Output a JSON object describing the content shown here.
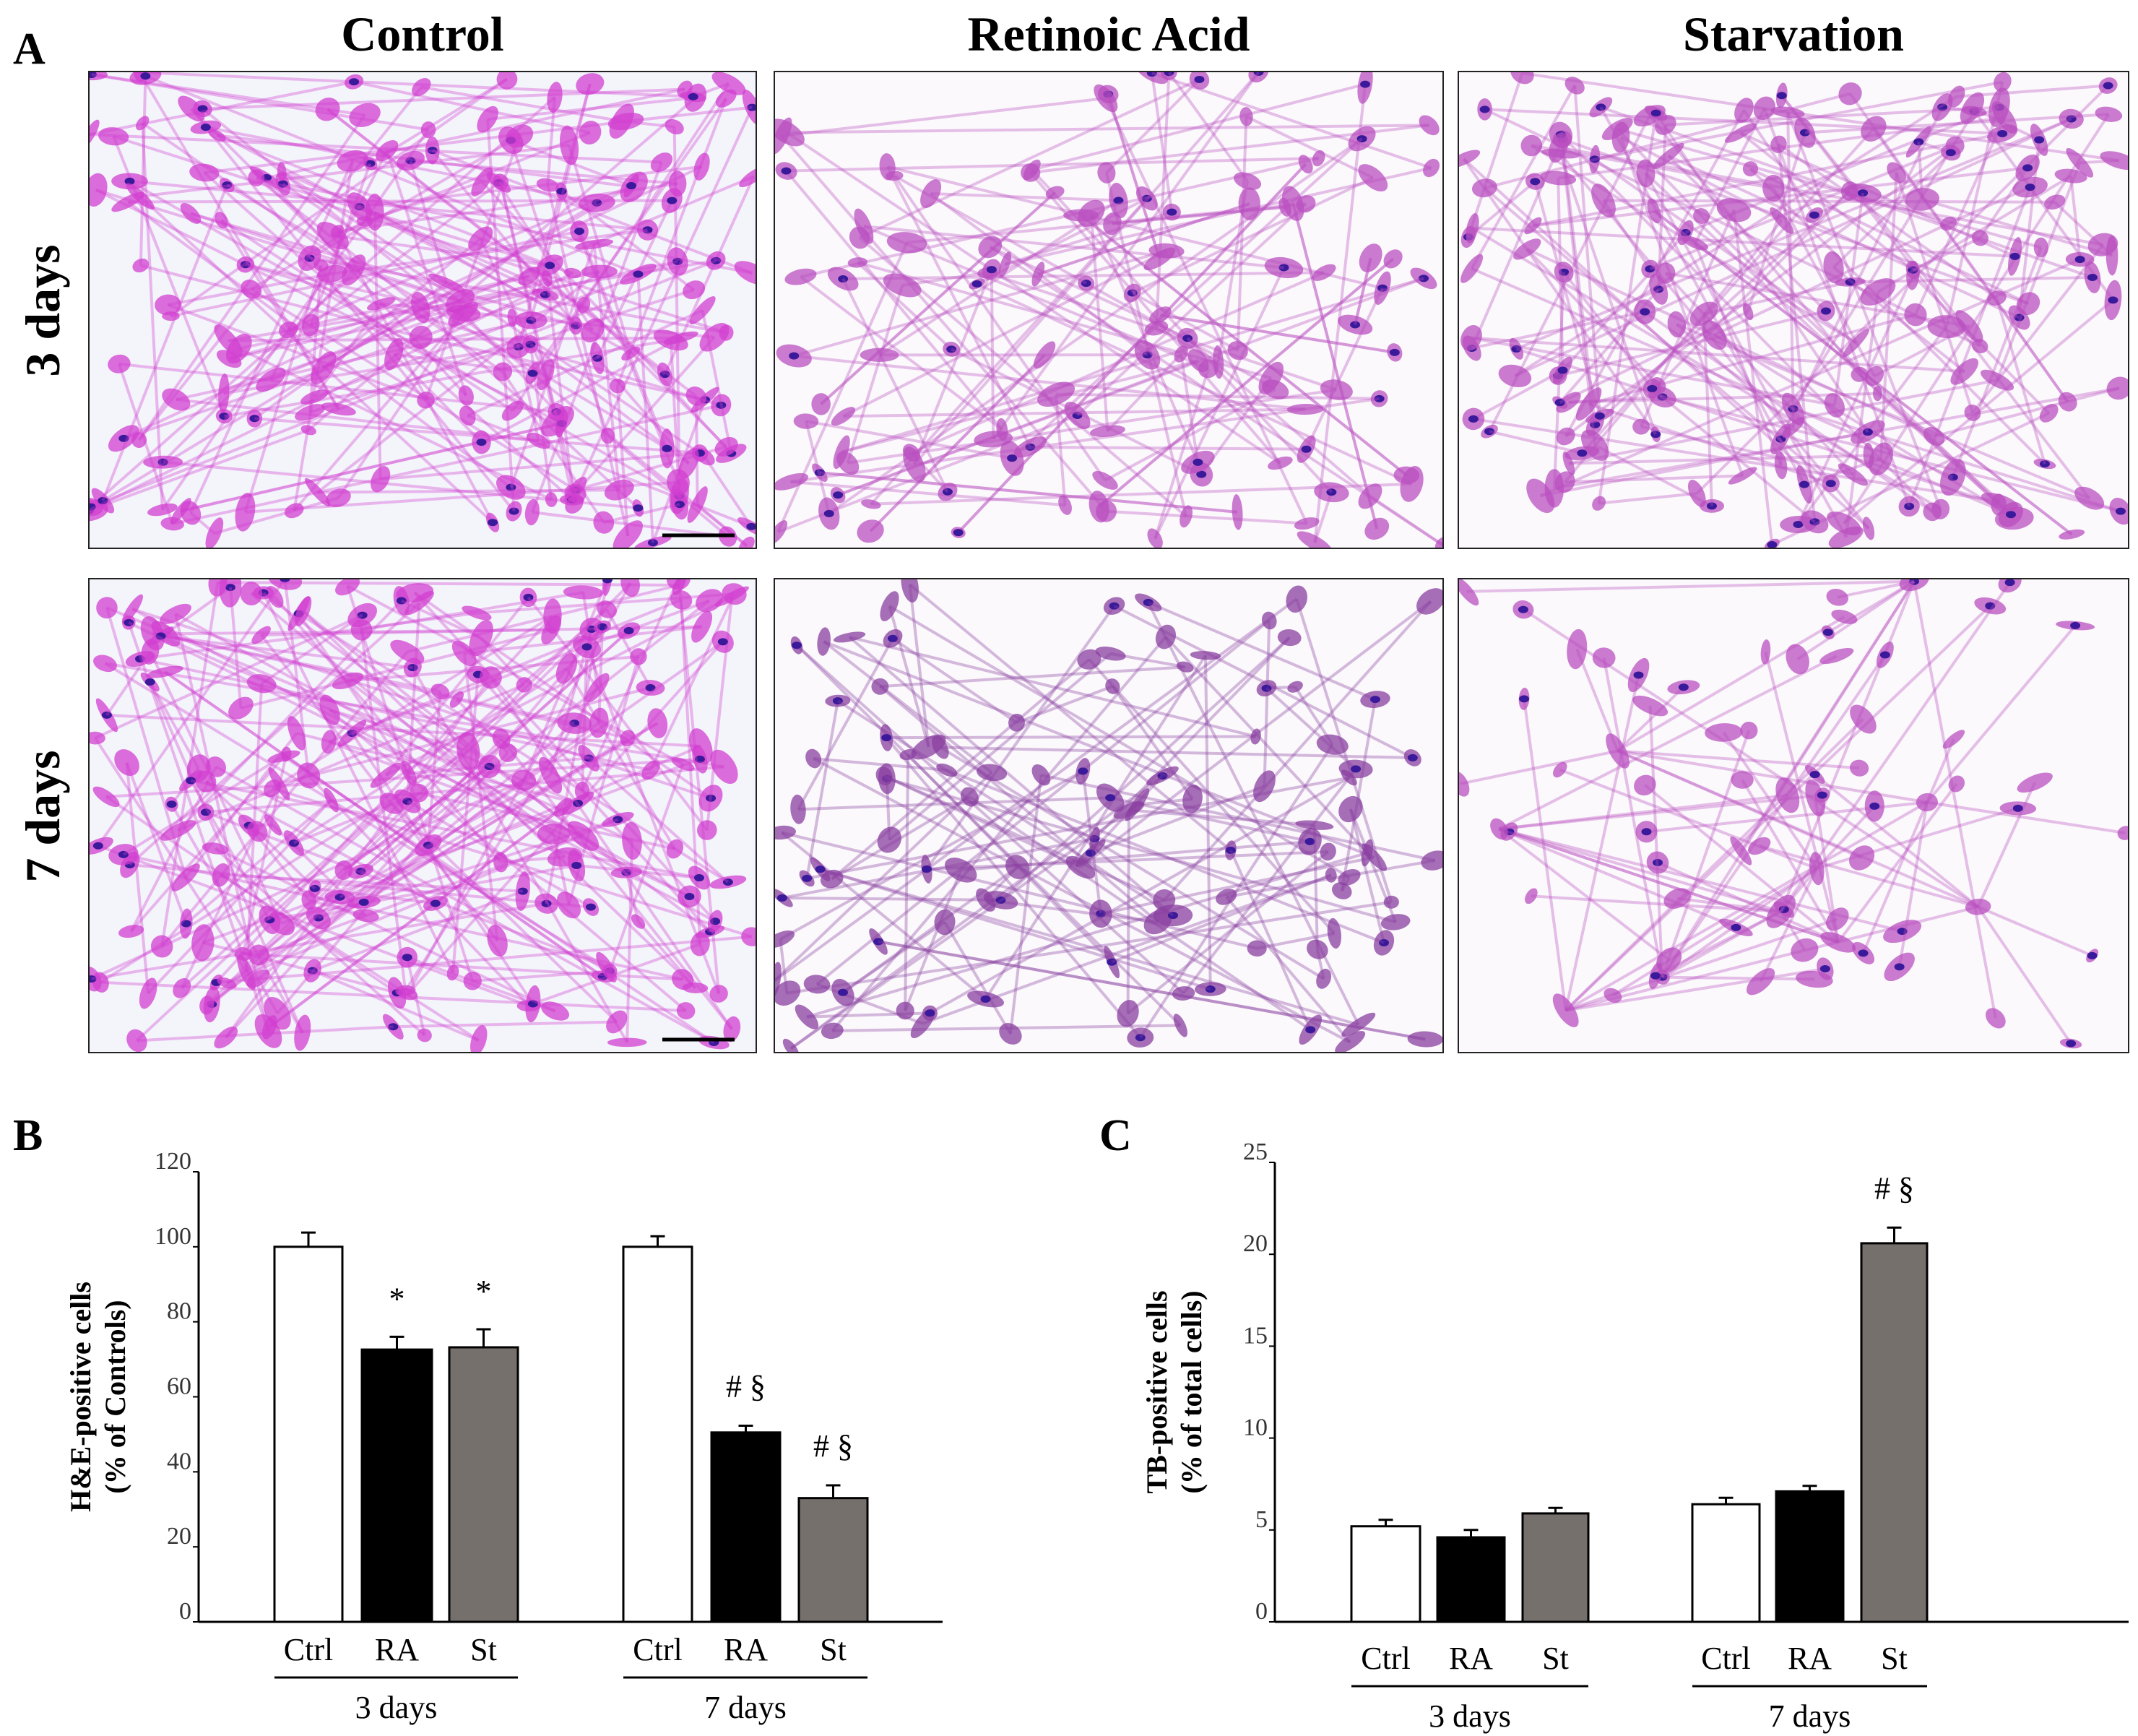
{
  "panel_a": {
    "label": "A",
    "columns": [
      "Control",
      "Retinoic Acid",
      "Starvation"
    ],
    "rows": [
      "3 days",
      "7 days"
    ]
  },
  "chart_data": [
    {
      "panel_label": "B",
      "type": "bar",
      "ylabel": "H&E-positive cells",
      "ylabel2": "(% of Controls)",
      "ylim": [
        0,
        120
      ],
      "yticks": [
        "0",
        "20",
        "40",
        "60",
        "80",
        "100",
        "120"
      ],
      "groups": [
        "3 days",
        "7 days"
      ],
      "categories": [
        "Ctrl",
        "RA",
        "St"
      ],
      "colors": [
        "#ffffff",
        "#000000",
        "#76706d"
      ],
      "series": [
        {
          "name": "3 days",
          "values": [
            100,
            72.6,
            73.2
          ],
          "errors": [
            3.8,
            3.4,
            4.8
          ],
          "annotations": [
            "",
            "*",
            "*"
          ]
        },
        {
          "name": "7 days",
          "values": [
            100,
            50.5,
            33
          ],
          "errors": [
            2.8,
            1.8,
            3.4
          ],
          "annotations": [
            "",
            "# §",
            "# §"
          ]
        }
      ]
    },
    {
      "panel_label": "C",
      "type": "bar",
      "ylabel": "TB-positive cells",
      "ylabel2": "(% of total cells)",
      "ylim": [
        0,
        25
      ],
      "yticks": [
        "0",
        "5",
        "10",
        "15",
        "20",
        "25"
      ],
      "groups": [
        "3 days",
        "7 days"
      ],
      "categories": [
        "Ctrl",
        "RA",
        "St"
      ],
      "colors": [
        "#ffffff",
        "#000000",
        "#76706d"
      ],
      "series": [
        {
          "name": "3 days",
          "values": [
            5.2,
            4.6,
            5.9
          ],
          "errors": [
            0.35,
            0.4,
            0.3
          ],
          "annotations": [
            "",
            "",
            ""
          ]
        },
        {
          "name": "7 days",
          "values": [
            6.4,
            7.1,
            20.6
          ],
          "errors": [
            0.35,
            0.3,
            0.85
          ],
          "annotations": [
            "",
            "",
            "# §"
          ]
        }
      ]
    }
  ]
}
